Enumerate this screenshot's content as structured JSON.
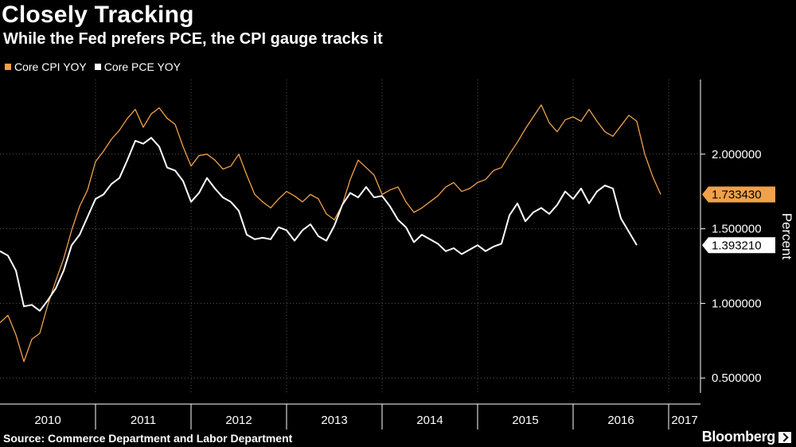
{
  "header": {
    "title": "Closely Tracking",
    "subtitle": "While the Fed prefers PCE, the CPI gauge tracks it"
  },
  "footer": {
    "source": "Source: Commerce Department and Labor Department",
    "logo": "Bloomberg"
  },
  "chart_data": {
    "type": "line",
    "title": "Closely Tracking",
    "subtitle": "While the Fed prefers PCE, the CPI gauge tracks it",
    "ylabel": "Percent",
    "xlabel": "",
    "ylim": [
      0.4,
      2.5
    ],
    "y_ticks": [
      0.5,
      1.0,
      1.5,
      2.0
    ],
    "y_tick_labels": [
      "0.500000",
      "1.000000",
      "1.500000",
      "2.000000"
    ],
    "x_start": "2010-01",
    "x_end": "2017-05",
    "years": [
      "2010",
      "2011",
      "2012",
      "2013",
      "2014",
      "2015",
      "2016",
      "2017"
    ],
    "legend_position": "top-left",
    "grid": true,
    "series": [
      {
        "name": "Core CPI YOY",
        "color": "#f0a14a",
        "last_value_label": "1.733430",
        "values": [
          0.87,
          0.92,
          0.79,
          0.61,
          0.76,
          0.8,
          0.99,
          1.15,
          1.3,
          1.49,
          1.65,
          1.76,
          1.95,
          2.02,
          2.1,
          2.16,
          2.24,
          2.3,
          2.18,
          2.27,
          2.31,
          2.24,
          2.2,
          2.05,
          1.92,
          1.99,
          2.0,
          1.96,
          1.9,
          1.92,
          2.0,
          1.86,
          1.73,
          1.68,
          1.64,
          1.7,
          1.75,
          1.72,
          1.68,
          1.73,
          1.7,
          1.6,
          1.56,
          1.66,
          1.83,
          1.96,
          1.91,
          1.86,
          1.73,
          1.76,
          1.78,
          1.68,
          1.61,
          1.64,
          1.68,
          1.72,
          1.78,
          1.81,
          1.75,
          1.77,
          1.81,
          1.83,
          1.89,
          1.91,
          2.0,
          2.08,
          2.17,
          2.25,
          2.33,
          2.21,
          2.15,
          2.23,
          2.25,
          2.22,
          2.3,
          2.22,
          2.15,
          2.12,
          2.19,
          2.26,
          2.22,
          2.0,
          1.85,
          1.73
        ]
      },
      {
        "name": "Core PCE YOY",
        "color": "#ffffff",
        "last_value_label": "1.393210",
        "values": [
          1.35,
          1.32,
          1.22,
          0.98,
          0.99,
          0.95,
          1.02,
          1.1,
          1.22,
          1.39,
          1.46,
          1.58,
          1.7,
          1.73,
          1.8,
          1.84,
          1.96,
          2.09,
          2.07,
          2.11,
          2.05,
          1.91,
          1.89,
          1.82,
          1.68,
          1.74,
          1.84,
          1.77,
          1.71,
          1.68,
          1.62,
          1.46,
          1.43,
          1.44,
          1.43,
          1.51,
          1.49,
          1.42,
          1.49,
          1.53,
          1.45,
          1.42,
          1.52,
          1.66,
          1.74,
          1.71,
          1.78,
          1.71,
          1.72,
          1.65,
          1.56,
          1.51,
          1.41,
          1.46,
          1.43,
          1.4,
          1.35,
          1.37,
          1.33,
          1.36,
          1.39,
          1.35,
          1.38,
          1.4,
          1.59,
          1.67,
          1.55,
          1.61,
          1.64,
          1.6,
          1.66,
          1.75,
          1.7,
          1.77,
          1.67,
          1.75,
          1.79,
          1.77,
          1.57,
          1.48,
          1.39
        ]
      }
    ]
  }
}
